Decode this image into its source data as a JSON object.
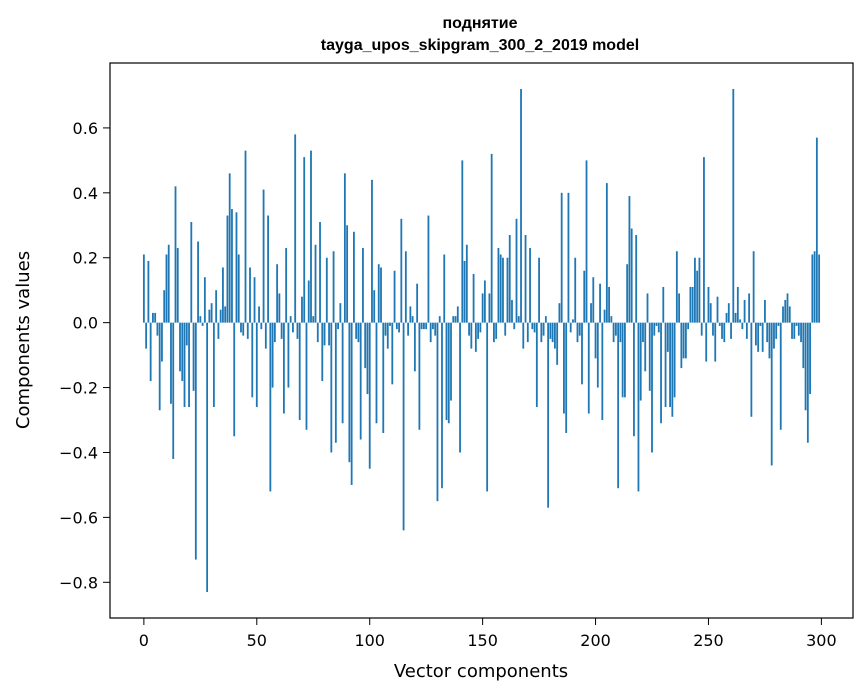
{
  "chart_data": {
    "type": "bar",
    "title": "поднятие",
    "subtitle": "tayga_upos_skipgram_300_2_2019 model",
    "xlabel": "Vector components",
    "ylabel": "Components values",
    "xlim": [
      -15,
      314
    ],
    "ylim": [
      -0.91,
      0.8
    ],
    "xticks": [
      0,
      50,
      100,
      150,
      200,
      250,
      300
    ],
    "xtick_labels": [
      "0",
      "50",
      "100",
      "150",
      "200",
      "250",
      "300"
    ],
    "yticks": [
      -0.8,
      -0.6,
      -0.4,
      -0.2,
      0.0,
      0.2,
      0.4,
      0.6
    ],
    "ytick_labels": [
      "−0.8",
      "−0.6",
      "−0.4",
      "−0.2",
      "0.0",
      "0.2",
      "0.4",
      "0.6"
    ],
    "bar_color": "#1f77b4",
    "grid": false,
    "values": [
      0.21,
      -0.08,
      0.19,
      -0.18,
      0.03,
      0.03,
      -0.04,
      -0.27,
      -0.12,
      0.1,
      0.21,
      0.24,
      -0.25,
      -0.42,
      0.42,
      0.23,
      -0.15,
      -0.18,
      -0.26,
      -0.07,
      -0.26,
      0.31,
      -0.21,
      -0.73,
      0.25,
      0.02,
      -0.01,
      0.14,
      -0.83,
      0.04,
      0.06,
      -0.26,
      0.1,
      -0.05,
      0.04,
      0.17,
      0.05,
      0.33,
      0.46,
      0.35,
      -0.35,
      0.34,
      0.21,
      -0.03,
      -0.04,
      0.53,
      -0.05,
      0.17,
      -0.23,
      0.14,
      -0.26,
      0.05,
      -0.02,
      0.41,
      -0.08,
      0.33,
      -0.52,
      -0.2,
      -0.06,
      0.18,
      0.09,
      -0.05,
      -0.28,
      0.23,
      -0.2,
      0.02,
      -0.03,
      0.58,
      -0.05,
      -0.3,
      0.08,
      0.51,
      -0.33,
      0.13,
      0.53,
      0.02,
      0.24,
      -0.06,
      0.31,
      -0.18,
      -0.07,
      0.2,
      -0.07,
      -0.4,
      0.22,
      -0.37,
      -0.02,
      0.06,
      -0.31,
      0.46,
      0.3,
      -0.43,
      -0.5,
      0.28,
      -0.05,
      -0.06,
      -0.36,
      0.23,
      -0.14,
      -0.22,
      -0.45,
      0.44,
      0.1,
      -0.31,
      0.18,
      0.17,
      -0.34,
      -0.04,
      -0.08,
      -0.01,
      -0.19,
      0.16,
      -0.02,
      -0.03,
      0.32,
      -0.64,
      0.22,
      -0.04,
      0.05,
      0.02,
      -0.15,
      0.12,
      -0.33,
      -0.02,
      -0.02,
      -0.02,
      0.33,
      -0.06,
      -0.02,
      -0.04,
      -0.55,
      0.02,
      -0.51,
      0.21,
      -0.3,
      -0.31,
      -0.24,
      0.02,
      0.02,
      0.05,
      -0.4,
      0.5,
      0.19,
      0.24,
      -0.04,
      -0.08,
      0.15,
      -0.09,
      -0.05,
      -0.03,
      0.09,
      0.13,
      -0.52,
      0.09,
      0.52,
      -0.06,
      -0.05,
      0.23,
      0.21,
      0.2,
      -0.04,
      0.2,
      0.27,
      0.07,
      -0.02,
      0.32,
      0.02,
      0.72,
      -0.08,
      0.27,
      -0.06,
      0.23,
      -0.02,
      -0.03,
      -0.26,
      0.2,
      -0.06,
      -0.04,
      0.02,
      -0.57,
      -0.05,
      -0.06,
      -0.08,
      -0.13,
      0.06,
      0.4,
      -0.28,
      -0.34,
      0.4,
      -0.03,
      0.01,
      0.2,
      -0.06,
      -0.04,
      -0.19,
      0.16,
      0.5,
      -0.28,
      0.06,
      0.14,
      -0.11,
      -0.2,
      0.12,
      -0.3,
      0.04,
      0.43,
      0.11,
      0.02,
      -0.06,
      -0.04,
      -0.51,
      -0.06,
      -0.23,
      -0.23,
      0.18,
      0.39,
      0.29,
      -0.35,
      0.27,
      -0.52,
      -0.24,
      -0.06,
      -0.15,
      0.09,
      -0.21,
      -0.4,
      -0.04,
      -0.01,
      -0.03,
      -0.31,
      0.11,
      -0.26,
      -0.09,
      -0.26,
      -0.29,
      -0.23,
      0.22,
      0.09,
      -0.14,
      -0.11,
      -0.11,
      -0.02,
      0.11,
      0.11,
      0.2,
      0.16,
      0.2,
      -0.04,
      0.51,
      -0.12,
      0.11,
      0.06,
      -0.04,
      -0.12,
      0.08,
      -0.01,
      -0.05,
      -0.06,
      0.03,
      0.06,
      -0.05,
      0.72,
      0.03,
      0.11,
      0.01,
      -0.02,
      0.07,
      -0.05,
      0.09,
      -0.29,
      0.22,
      -0.07,
      -0.09,
      -0.01,
      -0.09,
      0.07,
      -0.06,
      -0.11,
      -0.44,
      -0.08,
      -0.05,
      -0.01,
      -0.33,
      0.05,
      0.07,
      0.09,
      0.05,
      -0.05,
      -0.05,
      -0.01,
      -0.04,
      -0.06,
      -0.14,
      -0.27,
      -0.37,
      -0.22,
      0.21,
      0.22,
      0.57,
      0.21
    ]
  }
}
